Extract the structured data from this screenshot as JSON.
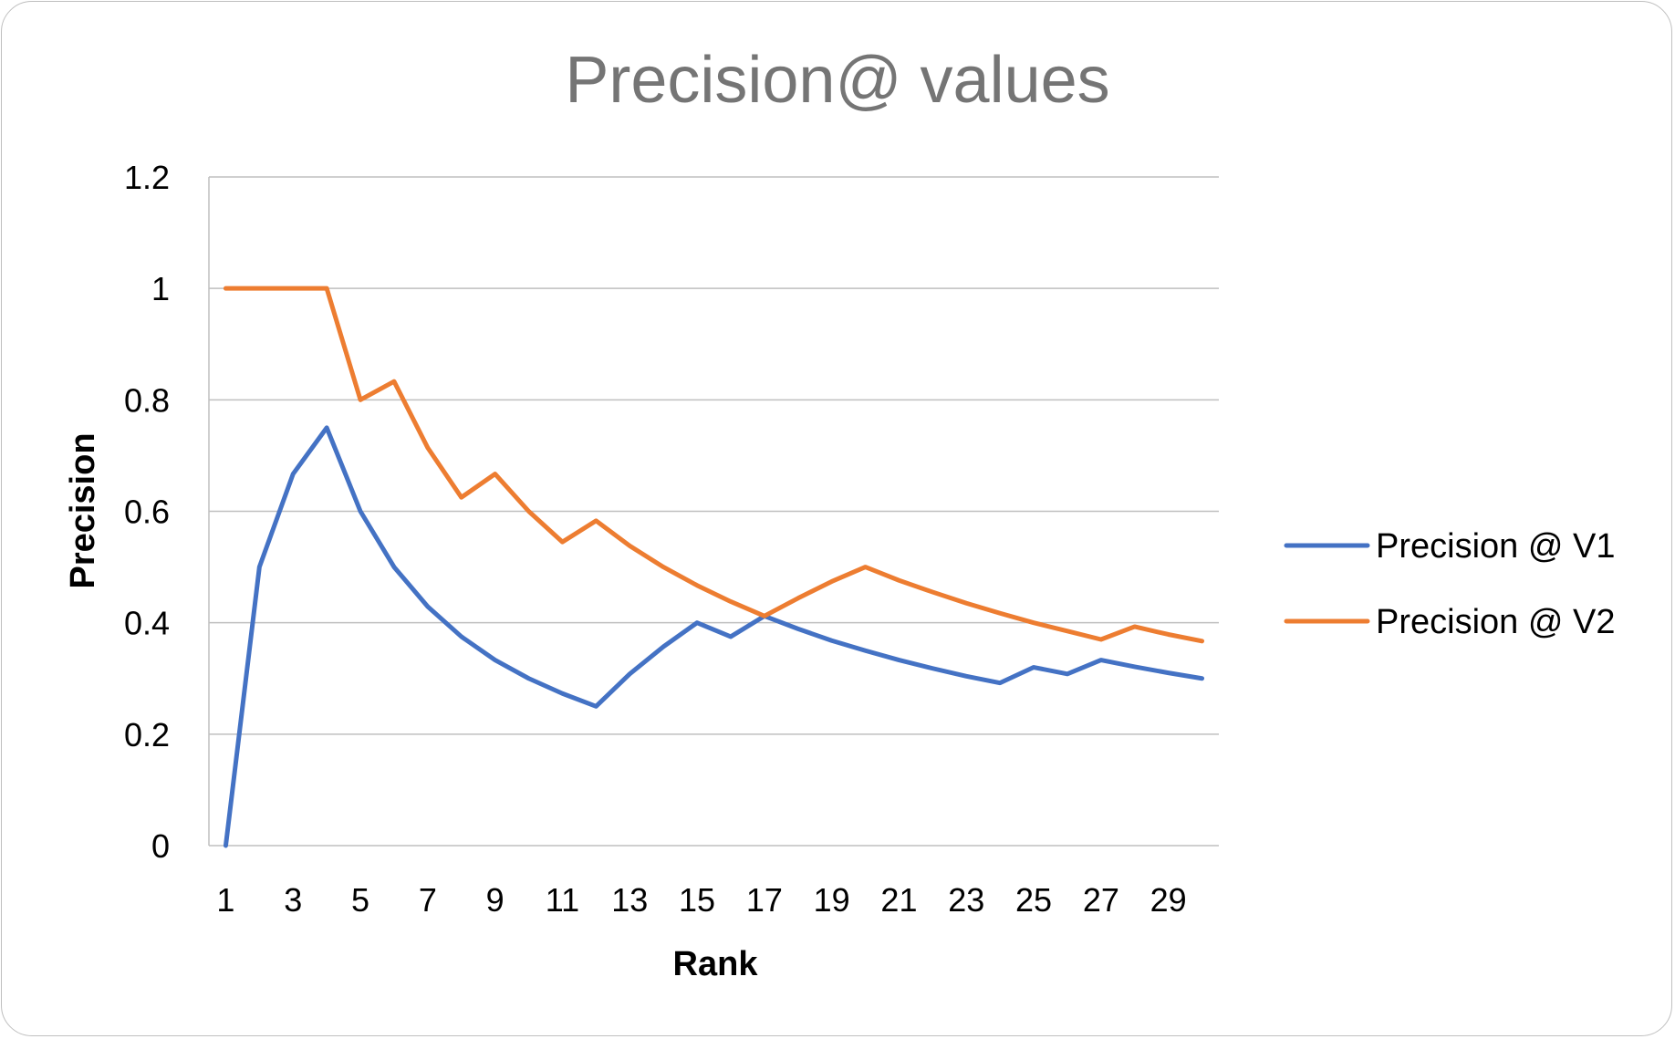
{
  "chart_data": {
    "type": "line",
    "title": "Precision@ values",
    "xlabel": "Rank",
    "ylabel": "Precision",
    "x": [
      1,
      2,
      3,
      4,
      5,
      6,
      7,
      8,
      9,
      10,
      11,
      12,
      13,
      14,
      15,
      16,
      17,
      18,
      19,
      20,
      21,
      22,
      23,
      24,
      25,
      26,
      27,
      28,
      29,
      30
    ],
    "x_tick_labels": [
      "1",
      "3",
      "5",
      "7",
      "9",
      "11",
      "13",
      "15",
      "17",
      "19",
      "21",
      "23",
      "25",
      "27",
      "29"
    ],
    "y_tick_labels": [
      "0",
      "0.2",
      "0.4",
      "0.6",
      "0.8",
      "1",
      "1.2"
    ],
    "ylim": [
      0,
      1.2
    ],
    "grid": true,
    "legend_position": "right",
    "series": [
      {
        "name": "Precision @ V1",
        "color": "#4472C4",
        "values": [
          0,
          0.5,
          0.667,
          0.75,
          0.6,
          0.5,
          0.429,
          0.375,
          0.333,
          0.3,
          0.273,
          0.25,
          0.308,
          0.357,
          0.4,
          0.375,
          0.412,
          0.389,
          0.368,
          0.35,
          0.333,
          0.318,
          0.304,
          0.292,
          0.32,
          0.308,
          0.333,
          0.321,
          0.31,
          0.3
        ]
      },
      {
        "name": "Precision @ V2",
        "color": "#ED7D31",
        "values": [
          1,
          1,
          1,
          1,
          0.8,
          0.833,
          0.714,
          0.625,
          0.667,
          0.6,
          0.545,
          0.583,
          0.538,
          0.5,
          0.467,
          0.438,
          0.412,
          0.444,
          0.474,
          0.5,
          0.476,
          0.455,
          0.435,
          0.417,
          0.4,
          0.385,
          0.37,
          0.393,
          0.379,
          0.367
        ]
      }
    ],
    "gridline_color": "#bfbfbf",
    "title_color": "#757575"
  }
}
